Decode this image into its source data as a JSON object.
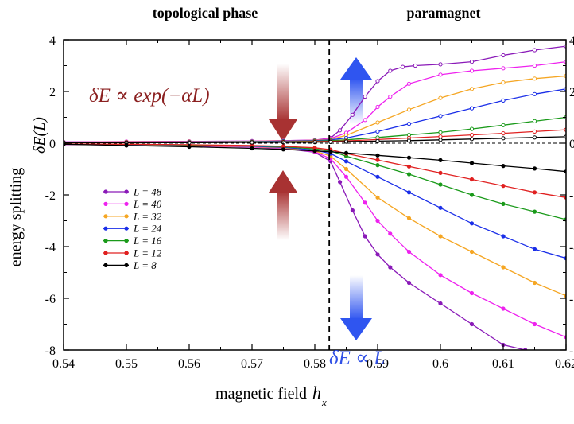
{
  "chart_data": {
    "type": "line",
    "xlabel": "magnetic field",
    "xlabel_symbol": "h",
    "xlabel_subscript": "x",
    "ylabel": "energy splitting",
    "ylabel_symbol": "δE(L)",
    "xlim": [
      0.54,
      0.62
    ],
    "ylim": [
      -8,
      4
    ],
    "x_ticks": [
      "0.54",
      "0.55",
      "0.56",
      "0.57",
      "0.58",
      "0.59",
      "0.6",
      "0.61",
      "0.62"
    ],
    "x_tick_values": [
      0.54,
      0.55,
      0.56,
      0.57,
      0.58,
      0.59,
      0.6,
      0.61,
      0.62
    ],
    "y_ticks": [
      "-8",
      "-6",
      "-4",
      "-2",
      "0",
      "2",
      "4"
    ],
    "y_tick_values": [
      -8,
      -6,
      -4,
      -2,
      0,
      2,
      4
    ],
    "critical_field": 0.5823,
    "zero_line": 0,
    "regions": {
      "left": "topological phase",
      "right": "paramagnet"
    },
    "annotations": {
      "left_formula": "δE ∝ exp(−αL)",
      "right_formula": "δE ∝ L"
    },
    "colors": {
      "axis": "#000000",
      "annotation_left": "#8b2020",
      "annotation_right": "#3050e6",
      "arrow_left": "#a83232",
      "arrow_right": "#2f55f0"
    },
    "legend_position": "left-middle",
    "series": [
      {
        "name": "L = 48",
        "color": "#8a1ab8",
        "upper": [
          [
            0.54,
            0.05
          ],
          [
            0.55,
            0.06
          ],
          [
            0.56,
            0.07
          ],
          [
            0.57,
            0.08
          ],
          [
            0.575,
            0.1
          ],
          [
            0.58,
            0.12
          ],
          [
            0.5825,
            0.2
          ],
          [
            0.584,
            0.5
          ],
          [
            0.586,
            1.1
          ],
          [
            0.588,
            1.8
          ],
          [
            0.59,
            2.4
          ],
          [
            0.592,
            2.8
          ],
          [
            0.594,
            2.95
          ],
          [
            0.596,
            3.0
          ],
          [
            0.6,
            3.05
          ],
          [
            0.605,
            3.15
          ],
          [
            0.61,
            3.4
          ],
          [
            0.615,
            3.6
          ],
          [
            0.62,
            3.75
          ]
        ],
        "lower": [
          [
            0.54,
            -0.05
          ],
          [
            0.55,
            -0.07
          ],
          [
            0.56,
            -0.1
          ],
          [
            0.57,
            -0.15
          ],
          [
            0.575,
            -0.2
          ],
          [
            0.58,
            -0.35
          ],
          [
            0.5825,
            -0.7
          ],
          [
            0.584,
            -1.5
          ],
          [
            0.586,
            -2.6
          ],
          [
            0.588,
            -3.6
          ],
          [
            0.59,
            -4.3
          ],
          [
            0.592,
            -4.8
          ],
          [
            0.595,
            -5.4
          ],
          [
            0.6,
            -6.2
          ],
          [
            0.605,
            -7.0
          ],
          [
            0.61,
            -7.8
          ],
          [
            0.6135,
            -8.0
          ]
        ]
      },
      {
        "name": "L = 40",
        "color": "#ee22ee",
        "upper": [
          [
            0.54,
            0.05
          ],
          [
            0.55,
            0.06
          ],
          [
            0.56,
            0.07
          ],
          [
            0.57,
            0.08
          ],
          [
            0.575,
            0.1
          ],
          [
            0.58,
            0.12
          ],
          [
            0.5825,
            0.18
          ],
          [
            0.585,
            0.4
          ],
          [
            0.588,
            0.9
          ],
          [
            0.59,
            1.4
          ],
          [
            0.592,
            1.8
          ],
          [
            0.595,
            2.3
          ],
          [
            0.6,
            2.65
          ],
          [
            0.605,
            2.8
          ],
          [
            0.61,
            2.9
          ],
          [
            0.615,
            3.0
          ],
          [
            0.62,
            3.15
          ]
        ],
        "lower": [
          [
            0.54,
            -0.05
          ],
          [
            0.55,
            -0.07
          ],
          [
            0.56,
            -0.1
          ],
          [
            0.57,
            -0.15
          ],
          [
            0.575,
            -0.2
          ],
          [
            0.58,
            -0.33
          ],
          [
            0.5825,
            -0.6
          ],
          [
            0.585,
            -1.3
          ],
          [
            0.588,
            -2.3
          ],
          [
            0.59,
            -3.0
          ],
          [
            0.592,
            -3.5
          ],
          [
            0.595,
            -4.2
          ],
          [
            0.6,
            -5.1
          ],
          [
            0.605,
            -5.8
          ],
          [
            0.61,
            -6.4
          ],
          [
            0.615,
            -7.0
          ],
          [
            0.62,
            -7.5
          ]
        ]
      },
      {
        "name": "L = 32",
        "color": "#f5a623",
        "upper": [
          [
            0.54,
            0.04
          ],
          [
            0.55,
            0.05
          ],
          [
            0.56,
            0.06
          ],
          [
            0.57,
            0.07
          ],
          [
            0.575,
            0.09
          ],
          [
            0.58,
            0.11
          ],
          [
            0.5825,
            0.15
          ],
          [
            0.585,
            0.3
          ],
          [
            0.59,
            0.8
          ],
          [
            0.595,
            1.3
          ],
          [
            0.6,
            1.75
          ],
          [
            0.605,
            2.1
          ],
          [
            0.61,
            2.35
          ],
          [
            0.615,
            2.5
          ],
          [
            0.62,
            2.6
          ]
        ],
        "lower": [
          [
            0.54,
            -0.04
          ],
          [
            0.55,
            -0.06
          ],
          [
            0.56,
            -0.09
          ],
          [
            0.57,
            -0.13
          ],
          [
            0.575,
            -0.18
          ],
          [
            0.58,
            -0.3
          ],
          [
            0.5825,
            -0.5
          ],
          [
            0.585,
            -1.0
          ],
          [
            0.59,
            -2.1
          ],
          [
            0.595,
            -2.9
          ],
          [
            0.6,
            -3.6
          ],
          [
            0.605,
            -4.2
          ],
          [
            0.61,
            -4.8
          ],
          [
            0.615,
            -5.4
          ],
          [
            0.62,
            -5.9
          ]
        ]
      },
      {
        "name": "L = 24",
        "color": "#1a2ee8",
        "upper": [
          [
            0.54,
            0.03
          ],
          [
            0.55,
            0.04
          ],
          [
            0.56,
            0.05
          ],
          [
            0.57,
            0.06
          ],
          [
            0.575,
            0.08
          ],
          [
            0.58,
            0.1
          ],
          [
            0.5825,
            0.13
          ],
          [
            0.585,
            0.2
          ],
          [
            0.59,
            0.45
          ],
          [
            0.595,
            0.75
          ],
          [
            0.6,
            1.05
          ],
          [
            0.605,
            1.35
          ],
          [
            0.61,
            1.65
          ],
          [
            0.615,
            1.9
          ],
          [
            0.62,
            2.1
          ]
        ],
        "lower": [
          [
            0.54,
            -0.03
          ],
          [
            0.55,
            -0.05
          ],
          [
            0.56,
            -0.08
          ],
          [
            0.57,
            -0.12
          ],
          [
            0.575,
            -0.16
          ],
          [
            0.58,
            -0.27
          ],
          [
            0.5825,
            -0.4
          ],
          [
            0.585,
            -0.7
          ],
          [
            0.59,
            -1.3
          ],
          [
            0.595,
            -1.9
          ],
          [
            0.6,
            -2.5
          ],
          [
            0.605,
            -3.1
          ],
          [
            0.61,
            -3.6
          ],
          [
            0.615,
            -4.1
          ],
          [
            0.62,
            -4.45
          ]
        ]
      },
      {
        "name": "L = 16",
        "color": "#1a9a1a",
        "upper": [
          [
            0.54,
            0.03
          ],
          [
            0.55,
            0.03
          ],
          [
            0.56,
            0.04
          ],
          [
            0.57,
            0.05
          ],
          [
            0.575,
            0.06
          ],
          [
            0.58,
            0.08
          ],
          [
            0.5825,
            0.1
          ],
          [
            0.585,
            0.13
          ],
          [
            0.59,
            0.22
          ],
          [
            0.595,
            0.32
          ],
          [
            0.6,
            0.42
          ],
          [
            0.605,
            0.55
          ],
          [
            0.61,
            0.7
          ],
          [
            0.615,
            0.85
          ],
          [
            0.62,
            1.0
          ]
        ],
        "lower": [
          [
            0.54,
            -0.03
          ],
          [
            0.55,
            -0.04
          ],
          [
            0.56,
            -0.07
          ],
          [
            0.57,
            -0.1
          ],
          [
            0.575,
            -0.14
          ],
          [
            0.58,
            -0.22
          ],
          [
            0.5825,
            -0.3
          ],
          [
            0.585,
            -0.5
          ],
          [
            0.59,
            -0.85
          ],
          [
            0.595,
            -1.2
          ],
          [
            0.6,
            -1.6
          ],
          [
            0.605,
            -2.0
          ],
          [
            0.61,
            -2.35
          ],
          [
            0.615,
            -2.65
          ],
          [
            0.62,
            -2.95
          ]
        ]
      },
      {
        "name": "L = 12",
        "color": "#e02020",
        "upper": [
          [
            0.54,
            0.02
          ],
          [
            0.55,
            0.03
          ],
          [
            0.56,
            0.03
          ],
          [
            0.57,
            0.04
          ],
          [
            0.575,
            0.05
          ],
          [
            0.58,
            0.06
          ],
          [
            0.5825,
            0.07
          ],
          [
            0.585,
            0.09
          ],
          [
            0.59,
            0.14
          ],
          [
            0.595,
            0.2
          ],
          [
            0.6,
            0.26
          ],
          [
            0.605,
            0.32
          ],
          [
            0.61,
            0.38
          ],
          [
            0.615,
            0.45
          ],
          [
            0.62,
            0.52
          ]
        ],
        "lower": [
          [
            0.54,
            -0.03
          ],
          [
            0.55,
            -0.04
          ],
          [
            0.56,
            -0.06
          ],
          [
            0.57,
            -0.09
          ],
          [
            0.575,
            -0.12
          ],
          [
            0.58,
            -0.18
          ],
          [
            0.5825,
            -0.25
          ],
          [
            0.585,
            -0.4
          ],
          [
            0.59,
            -0.65
          ],
          [
            0.595,
            -0.9
          ],
          [
            0.6,
            -1.15
          ],
          [
            0.605,
            -1.4
          ],
          [
            0.61,
            -1.65
          ],
          [
            0.615,
            -1.9
          ],
          [
            0.62,
            -2.1
          ]
        ]
      },
      {
        "name": "L = 8",
        "color": "#000000",
        "upper": [
          [
            0.54,
            0.02
          ],
          [
            0.55,
            0.02
          ],
          [
            0.56,
            0.02
          ],
          [
            0.57,
            0.03
          ],
          [
            0.575,
            0.03
          ],
          [
            0.58,
            0.04
          ],
          [
            0.5825,
            0.05
          ],
          [
            0.585,
            0.06
          ],
          [
            0.59,
            0.08
          ],
          [
            0.595,
            0.1
          ],
          [
            0.6,
            0.13
          ],
          [
            0.605,
            0.16
          ],
          [
            0.61,
            0.19
          ],
          [
            0.615,
            0.22
          ],
          [
            0.62,
            0.25
          ]
        ],
        "lower": [
          [
            0.54,
            -0.04
          ],
          [
            0.55,
            -0.09
          ],
          [
            0.56,
            -0.14
          ],
          [
            0.57,
            -0.2
          ],
          [
            0.575,
            -0.24
          ],
          [
            0.58,
            -0.3
          ],
          [
            0.5825,
            -0.33
          ],
          [
            0.585,
            -0.38
          ],
          [
            0.59,
            -0.47
          ],
          [
            0.595,
            -0.56
          ],
          [
            0.6,
            -0.66
          ],
          [
            0.605,
            -0.77
          ],
          [
            0.61,
            -0.88
          ],
          [
            0.615,
            -0.98
          ],
          [
            0.62,
            -1.1
          ]
        ]
      }
    ]
  }
}
